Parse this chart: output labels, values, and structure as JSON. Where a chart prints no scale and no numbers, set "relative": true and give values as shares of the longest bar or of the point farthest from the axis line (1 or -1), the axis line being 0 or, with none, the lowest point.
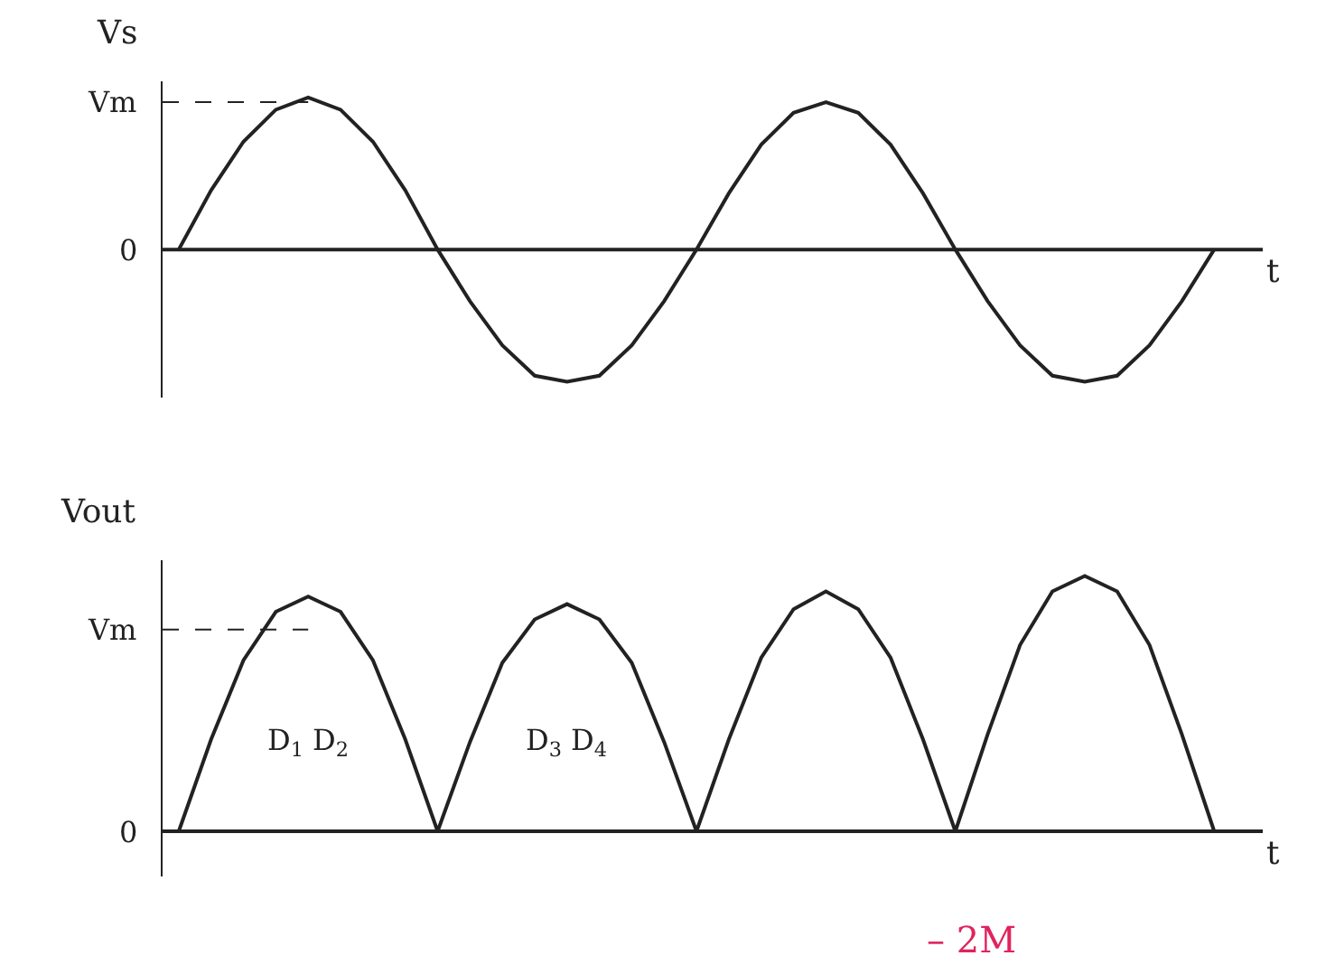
{
  "chart_data": [
    {
      "type": "line",
      "relative": true,
      "ylabel": "Vs",
      "xlabel": "t",
      "categories": [
        null,
        null,
        null,
        null,
        null,
        null,
        null,
        null,
        null,
        null,
        null,
        null,
        null,
        null,
        null,
        null,
        null,
        null,
        null,
        null,
        null,
        null,
        null,
        null,
        null,
        null,
        null,
        null,
        null,
        null,
        null,
        null,
        null
      ],
      "series": [
        {
          "color": "#222222",
          "values": [
            0,
            0.39,
            0.71,
            0.92,
            1,
            0.92,
            0.71,
            0.39,
            0,
            -0.34,
            -0.63,
            -0.83,
            -0.87,
            -0.83,
            -0.63,
            -0.34,
            0,
            0.37,
            0.69,
            0.9,
            0.97,
            0.9,
            0.69,
            0.37,
            0,
            -0.34,
            -0.63,
            -0.83,
            -0.87,
            -0.83,
            -0.63,
            -0.34,
            0
          ]
        }
      ],
      "ref_lines": [
        {
          "axis": "y",
          "value": 0.97,
          "label": "Vm",
          "line_style": "dashed"
        },
        {
          "axis": "y",
          "value": 0,
          "label": "0",
          "line_style": "solid"
        }
      ],
      "grid": false,
      "marker": "none",
      "line_style": "solid"
    },
    {
      "type": "line",
      "relative": true,
      "ylabel": "Vout",
      "xlabel": "t",
      "categories": [
        null,
        null,
        null,
        null,
        null,
        null,
        null,
        null,
        null,
        null,
        null,
        null,
        null,
        null,
        null,
        null,
        null,
        null,
        null,
        null,
        null,
        null,
        null,
        null,
        null,
        null,
        null,
        null,
        null,
        null,
        null,
        null,
        null
      ],
      "series": [
        {
          "color": "#222222",
          "values": [
            0,
            0.36,
            0.67,
            0.86,
            0.92,
            0.86,
            0.67,
            0.36,
            0,
            0.35,
            0.66,
            0.83,
            0.89,
            0.83,
            0.66,
            0.35,
            0,
            0.36,
            0.68,
            0.87,
            0.94,
            0.87,
            0.68,
            0.36,
            0,
            0.38,
            0.73,
            0.94,
            1,
            0.94,
            0.73,
            0.38,
            0
          ]
        }
      ],
      "ref_lines": [
        {
          "axis": "y",
          "value": 0.79,
          "label": "Vm",
          "line_style": "dashed"
        },
        {
          "axis": "y",
          "value": 0,
          "label": "0",
          "line_style": "solid"
        }
      ],
      "grid": false,
      "marker": "none",
      "line_style": "solid",
      "annotations": [
        "D$_{1}$ D$_{2}$",
        "D$_{3}$ D$_{4}$",
        "– 2M"
      ]
    }
  ]
}
